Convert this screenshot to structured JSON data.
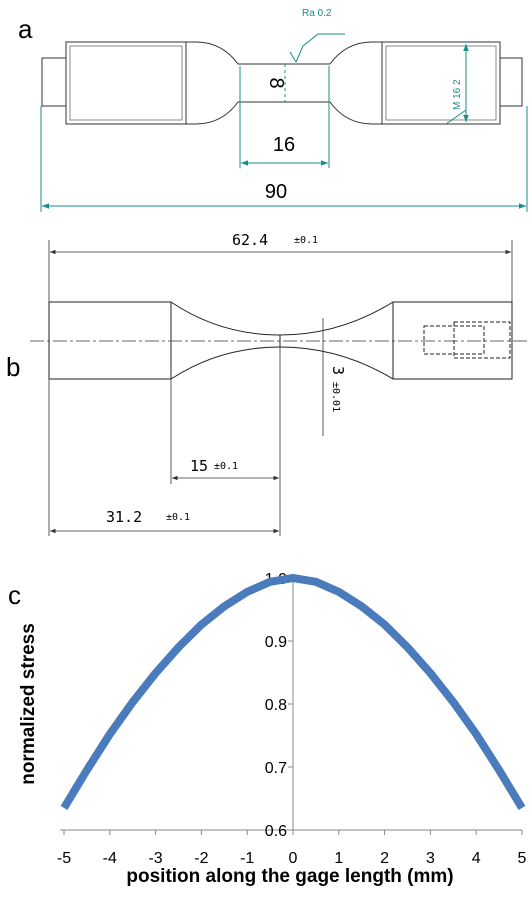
{
  "panel_labels": [
    "a",
    "b",
    "c"
  ],
  "panel_a": {
    "surface_finish": "Ra 0.2",
    "thread": "M 16 2",
    "gage_diameter": "8",
    "gage_length": "16",
    "total_length": "90"
  },
  "panel_b": {
    "total_length": "62.4",
    "total_length_tol": "±0.1",
    "thickness": "3",
    "thickness_tol": "±0.01",
    "gage_half": "15",
    "gage_half_tol": "±0.1",
    "half_length": "31.2",
    "half_length_tol": "±0.1"
  },
  "chart_data": {
    "type": "line",
    "xlabel": "position along the gage length (mm)",
    "ylabel": "normalized stress",
    "xlim": [
      -5,
      5
    ],
    "ylim": [
      0.6,
      1.0
    ],
    "x_ticks": [
      "-5",
      "-4",
      "-3",
      "-2",
      "-1",
      "0",
      "1",
      "2",
      "3",
      "4",
      "5"
    ],
    "y_ticks": [
      "0.6",
      "0.7",
      "0.8",
      "0.9",
      "1.0"
    ],
    "series_color": "#4a7bbd",
    "x": [
      -5,
      -4.5,
      -4,
      -3.5,
      -3,
      -2.5,
      -2,
      -1.5,
      -1,
      -0.5,
      0,
      0.5,
      1,
      1.5,
      2,
      2.5,
      3,
      3.5,
      4,
      4.5,
      5
    ],
    "y": [
      0.635,
      0.695,
      0.752,
      0.803,
      0.849,
      0.89,
      0.926,
      0.955,
      0.978,
      0.994,
      1.0,
      0.994,
      0.978,
      0.955,
      0.926,
      0.89,
      0.849,
      0.803,
      0.752,
      0.695,
      0.635
    ]
  }
}
